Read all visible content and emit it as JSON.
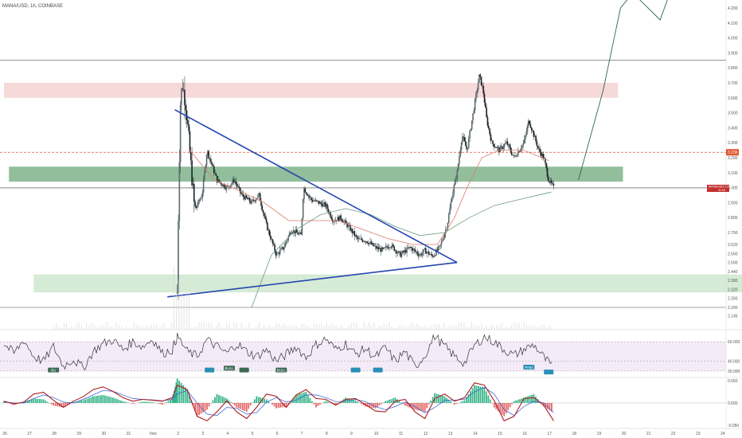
{
  "header": {
    "title": "MANA/USD, 1h, COINBASE"
  },
  "colors": {
    "background": "#ffffff",
    "candle_up": "#5b6b70",
    "candle_down": "#1c2226",
    "support_zone": "#cfe8cf",
    "mid_zone": "#7fb38a",
    "resistance_zone": "#f4d2d2",
    "triangle_line": "#2446b0",
    "ma_fast": "#e07a6a",
    "ma_slow": "#6a9a80",
    "price_tag": "#c2302f",
    "level_tag": "#e0542f",
    "rsi_line": "#333333",
    "rsi_band": "#f5eaf8",
    "macd_line": "#aa1e22",
    "signal_line": "#2d57d4",
    "hist_up": "#39b58a",
    "hist_down": "#e56a6a",
    "bull_label": "#3d6b55",
    "bear_label": "#2a8fb5"
  },
  "price_tags": {
    "current": "MANAUSD 2.998",
    "current_sub": "31:25",
    "level": "3.236"
  },
  "chart_data": [
    {
      "type": "candlestick",
      "name": "price",
      "y_ticks": [
        "4.200",
        "4.100",
        "4.000",
        "3.900",
        "3.800",
        "3.700",
        "3.600",
        "3.500",
        "3.400",
        "3.300",
        "3.200",
        "3.100",
        "3.000",
        "2.900",
        "2.800",
        "2.700",
        "2.620",
        "2.560",
        "2.500",
        "2.440",
        "2.380",
        "2.320",
        "2.260",
        "2.200",
        "2.145"
      ],
      "x_ticks": [
        "26",
        "27",
        "28",
        "29",
        "30",
        "31",
        "Nov",
        "2",
        "3",
        "4",
        "5",
        "6",
        "7",
        "8",
        "9",
        "10",
        "11",
        "12",
        "13",
        "14",
        "15",
        "16",
        "17",
        "18",
        "19",
        "20",
        "21",
        "22",
        "23",
        "24"
      ],
      "close_path": [
        [
          31.0,
          2.3
        ],
        [
          31.05,
          2.9
        ],
        [
          31.12,
          3.55
        ],
        [
          31.2,
          3.7
        ],
        [
          31.35,
          3.55
        ],
        [
          31.5,
          3.25
        ],
        [
          31.7,
          2.85
        ],
        [
          32.0,
          2.95
        ],
        [
          32.2,
          3.25
        ],
        [
          32.4,
          3.15
        ],
        [
          32.6,
          3.05
        ],
        [
          33.0,
          3.0
        ],
        [
          33.3,
          3.05
        ],
        [
          33.6,
          2.95
        ],
        [
          34.0,
          2.9
        ],
        [
          34.3,
          2.95
        ],
        [
          34.6,
          2.75
        ],
        [
          35.0,
          2.55
        ],
        [
          35.3,
          2.6
        ],
        [
          35.6,
          2.72
        ],
        [
          36.0,
          2.68
        ],
        [
          36.1,
          3.0
        ],
        [
          36.4,
          2.92
        ],
        [
          36.7,
          2.9
        ],
        [
          37.0,
          2.88
        ],
        [
          37.3,
          2.78
        ],
        [
          37.6,
          2.8
        ],
        [
          38.0,
          2.72
        ],
        [
          38.3,
          2.65
        ],
        [
          38.6,
          2.65
        ],
        [
          39.0,
          2.6
        ],
        [
          39.3,
          2.58
        ],
        [
          39.6,
          2.62
        ],
        [
          40.0,
          2.55
        ],
        [
          40.4,
          2.6
        ],
        [
          40.8,
          2.55
        ],
        [
          41.0,
          2.58
        ],
        [
          41.3,
          2.54
        ],
        [
          41.6,
          2.6
        ],
        [
          41.9,
          2.75
        ],
        [
          42.1,
          2.95
        ],
        [
          42.3,
          3.1
        ],
        [
          42.5,
          3.35
        ],
        [
          42.7,
          3.25
        ],
        [
          43.0,
          3.55
        ],
        [
          43.2,
          3.75
        ],
        [
          43.35,
          3.65
        ],
        [
          43.5,
          3.45
        ],
        [
          43.7,
          3.3
        ],
        [
          44.0,
          3.25
        ],
        [
          44.3,
          3.3
        ],
        [
          44.6,
          3.2
        ],
        [
          45.0,
          3.3
        ],
        [
          45.2,
          3.45
        ],
        [
          45.4,
          3.35
        ],
        [
          45.6,
          3.25
        ],
        [
          45.8,
          3.2
        ],
        [
          46.0,
          3.05
        ],
        [
          46.2,
          3.0
        ]
      ],
      "moving_averages": [
        {
          "name": "",
          "points": [
            [
              31.5,
              3.25
            ],
            [
              32.5,
              3.05
            ],
            [
              33.5,
              2.98
            ],
            [
              34.5,
              2.9
            ],
            [
              35.5,
              2.78
            ],
            [
              36.5,
              2.78
            ],
            [
              37.5,
              2.78
            ],
            [
              38.5,
              2.72
            ],
            [
              39.5,
              2.66
            ],
            [
              40.5,
              2.62
            ],
            [
              41.5,
              2.62
            ],
            [
              42.2,
              2.8
            ],
            [
              42.7,
              3.0
            ],
            [
              43.3,
              3.2
            ],
            [
              44.0,
              3.25
            ],
            [
              45.0,
              3.25
            ],
            [
              46.0,
              3.18
            ]
          ]
        },
        {
          "name": "",
          "points": [
            [
              34.0,
              2.2
            ],
            [
              34.8,
              2.55
            ],
            [
              35.8,
              2.72
            ],
            [
              36.8,
              2.82
            ],
            [
              37.8,
              2.86
            ],
            [
              38.8,
              2.82
            ],
            [
              39.8,
              2.74
            ],
            [
              40.8,
              2.68
            ],
            [
              41.8,
              2.7
            ],
            [
              42.8,
              2.8
            ],
            [
              43.8,
              2.88
            ],
            [
              44.8,
              2.92
            ],
            [
              46.1,
              2.97
            ]
          ]
        }
      ],
      "trendlines": [
        {
          "from": [
            30.9,
            3.52
          ],
          "to": [
            42.3,
            2.5
          ]
        },
        {
          "from": [
            30.6,
            2.27
          ],
          "to": [
            42.3,
            2.5
          ]
        }
      ],
      "zones": [
        {
          "from_x": 24.0,
          "to_x": 48.8,
          "y_low": 3.6,
          "y_high": 3.7,
          "kind": "resistance"
        },
        {
          "from_x": 24.2,
          "to_x": 49.0,
          "y_low": 3.04,
          "y_high": 3.14,
          "kind": "mid"
        },
        {
          "from_x": 25.2,
          "to_x": 54.0,
          "y_low": 2.3,
          "y_high": 2.42,
          "kind": "support"
        }
      ],
      "horizontal_lines": [
        {
          "y": 3.85
        },
        {
          "y": 3.236
        },
        {
          "y": 2.998
        },
        {
          "y": 2.2
        }
      ],
      "projection": [
        [
          47.2,
          3.05
        ],
        [
          48.2,
          3.65
        ],
        [
          48.9,
          4.2
        ],
        [
          49.4,
          4.3
        ],
        [
          50.5,
          4.12
        ],
        [
          51.0,
          4.35
        ]
      ]
    },
    {
      "type": "line",
      "name": "rsi",
      "y_ticks": [
        "60.000",
        "40.000",
        "30.000"
      ],
      "ylim": [
        25,
        70
      ],
      "x": [
        24,
        24.4,
        24.8,
        25.2,
        25.6,
        26.0,
        26.4,
        26.8,
        27.2,
        27.6,
        28.0,
        28.4,
        28.8,
        29.2,
        29.6,
        30.0,
        30.4,
        30.8,
        31.0,
        31.4,
        31.8,
        32.2,
        32.6,
        33.0,
        33.4,
        33.8,
        34.2,
        34.6,
        35.0,
        35.4,
        35.8,
        36.2,
        36.6,
        37.0,
        37.4,
        37.8,
        38.2,
        38.6,
        39.0,
        39.4,
        39.8,
        40.2,
        40.6,
        41.0,
        41.4,
        41.8,
        42.2,
        42.6,
        43.0,
        43.4,
        43.8,
        44.2,
        44.6,
        45.0,
        45.4,
        45.8,
        46.2
      ],
      "values": [
        58,
        48,
        62,
        45,
        40,
        55,
        35,
        42,
        33,
        50,
        58,
        62,
        52,
        60,
        55,
        63,
        48,
        52,
        66,
        50,
        45,
        62,
        55,
        48,
        58,
        50,
        45,
        52,
        40,
        47,
        55,
        44,
        57,
        63,
        52,
        58,
        47,
        53,
        44,
        54,
        40,
        50,
        34,
        46,
        66,
        55,
        45,
        38,
        56,
        65,
        60,
        52,
        46,
        52,
        57,
        44,
        33
      ]
    },
    {
      "type": "bar",
      "name": "macd",
      "y_ticks": [
        "0.050",
        "0.000",
        "-0.050"
      ],
      "ylim": [
        -0.06,
        0.055
      ],
      "x": [
        24,
        24.4,
        24.8,
        25.2,
        25.6,
        26.0,
        26.4,
        26.8,
        27.2,
        27.6,
        28.0,
        28.4,
        28.8,
        29.2,
        29.6,
        30.0,
        30.4,
        30.8,
        31.0,
        31.4,
        31.8,
        32.2,
        32.6,
        33.0,
        33.4,
        33.8,
        34.2,
        34.6,
        35.0,
        35.4,
        35.8,
        36.2,
        36.6,
        37.0,
        37.4,
        37.8,
        38.2,
        38.6,
        39.0,
        39.4,
        39.8,
        40.2,
        40.6,
        41.0,
        41.4,
        41.8,
        42.2,
        42.6,
        43.0,
        43.4,
        43.8,
        44.2,
        44.6,
        45.0,
        45.4,
        45.8,
        46.2
      ],
      "values": [
        0.004,
        -0.005,
        0.003,
        0.01,
        0.008,
        -0.006,
        -0.01,
        0.002,
        0.006,
        0.015,
        0.018,
        0.012,
        0.004,
        -0.002,
        0.003,
        0.002,
        -0.004,
        0.01,
        0.055,
        0.03,
        -0.03,
        -0.015,
        0.02,
        0.01,
        -0.01,
        -0.02,
        0.015,
        0.008,
        -0.012,
        -0.008,
        0.018,
        0.025,
        -0.01,
        0.005,
        -0.006,
        0.012,
        0.006,
        -0.008,
        -0.012,
        0.004,
        0.012,
        -0.006,
        -0.015,
        -0.02,
        0.022,
        0.015,
        -0.004,
        0.006,
        0.04,
        0.035,
        -0.01,
        -0.03,
        0.004,
        0.012,
        0.02,
        -0.008,
        -0.022
      ],
      "macd_line": [
        0.004,
        -0.002,
        0.002,
        0.02,
        0.024,
        0.006,
        -0.01,
        0.004,
        0.014,
        0.03,
        0.036,
        0.026,
        0.012,
        0.004,
        0.008,
        0.006,
        0.004,
        0.012,
        0.04,
        0.03,
        -0.03,
        -0.04,
        -0.02,
        0.005,
        -0.02,
        -0.035,
        -0.01,
        0.02,
        0.015,
        -0.01,
        0.018,
        0.03,
        0.01,
        0.008,
        -0.005,
        0.008,
        0.01,
        -0.004,
        -0.018,
        -0.02,
        0.004,
        0.008,
        -0.02,
        -0.035,
        0.01,
        0.02,
        0.004,
        0.012,
        0.045,
        0.04,
        0.005,
        -0.04,
        -0.03,
        0.01,
        0.012,
        -0.005,
        -0.04
      ],
      "signal_line": [
        0.002,
        0.0,
        0.0,
        0.01,
        0.018,
        0.012,
        0.002,
        0.0,
        0.008,
        0.018,
        0.028,
        0.026,
        0.018,
        0.01,
        0.008,
        0.007,
        0.005,
        0.008,
        0.02,
        0.028,
        0.0,
        -0.025,
        -0.028,
        -0.01,
        -0.012,
        -0.025,
        -0.022,
        0.002,
        0.012,
        0.002,
        0.006,
        0.018,
        0.018,
        0.012,
        0.003,
        0.004,
        0.008,
        0.003,
        -0.008,
        -0.015,
        -0.008,
        0.002,
        -0.008,
        -0.022,
        -0.01,
        0.006,
        0.006,
        0.008,
        0.025,
        0.035,
        0.02,
        -0.015,
        -0.028,
        -0.008,
        0.004,
        0.0,
        -0.022
      ]
    }
  ],
  "signals": [
    {
      "x": 26.0,
      "y": 31,
      "text": "BU",
      "kind": "bull"
    },
    {
      "x": 32.3,
      "y": 31,
      "text": "",
      "kind": "bear"
    },
    {
      "x": 33.1,
      "y": 33,
      "text": "BULL",
      "kind": "bull"
    },
    {
      "x": 33.7,
      "y": 31,
      "text": "",
      "kind": "bull"
    },
    {
      "x": 35.2,
      "y": 31,
      "text": "BULL",
      "kind": "bull"
    },
    {
      "x": 38.2,
      "y": 31,
      "text": "",
      "kind": "bear"
    },
    {
      "x": 39.1,
      "y": 31,
      "text": "",
      "kind": "bear"
    },
    {
      "x": 45.2,
      "y": 34,
      "text": "PAID",
      "kind": "bear"
    },
    {
      "x": 46.0,
      "y": 29,
      "text": "",
      "kind": "bear"
    }
  ]
}
